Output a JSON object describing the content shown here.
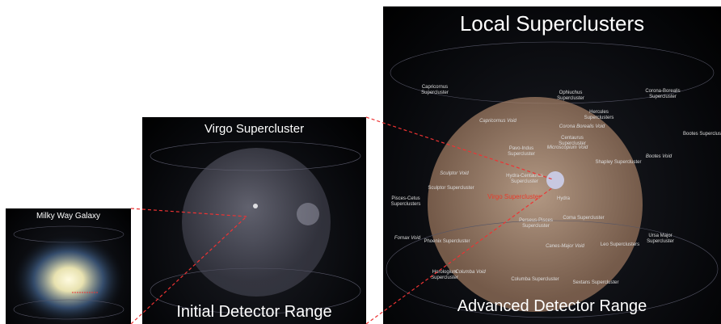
{
  "panels": [
    {
      "title": "Milky Way Galaxy"
    },
    {
      "title": "Virgo Supercluster",
      "caption": "Initial Detector Range"
    },
    {
      "title": "Local Superclusters",
      "caption": "Advanced Detector Range",
      "labels": [
        "Capricornus Supercluster",
        "Ophiuchus Supercluster",
        "Corona-Borealis Supercluster",
        "Hercules Superclusters",
        "Corona Borealis Void",
        "Capricornus Void",
        "Bootes Supercluster",
        "Microscopium Void",
        "Pavo-Indus Supercluster",
        "Centaurus Supercluster",
        "Shapley Supercluster",
        "Bootes Void",
        "Hydra-Centaurus Supercluster",
        "Sculptor Void",
        "Sculptor Supercluster",
        "Pisces-Cetus Superclusters",
        "Virgo Supercluster",
        "Hydra",
        "Coma Supercluster",
        "Perseus-Pisces Supercluster",
        "Ursa Major Supercluster",
        "Fornax Void",
        "Phoenix Supercluster",
        "Leo Superclusters",
        "Canes-Major Void",
        "Columba Void",
        "Horologium Supercluster",
        "Columba Supercluster",
        "Sextans Supercluster"
      ]
    }
  ]
}
